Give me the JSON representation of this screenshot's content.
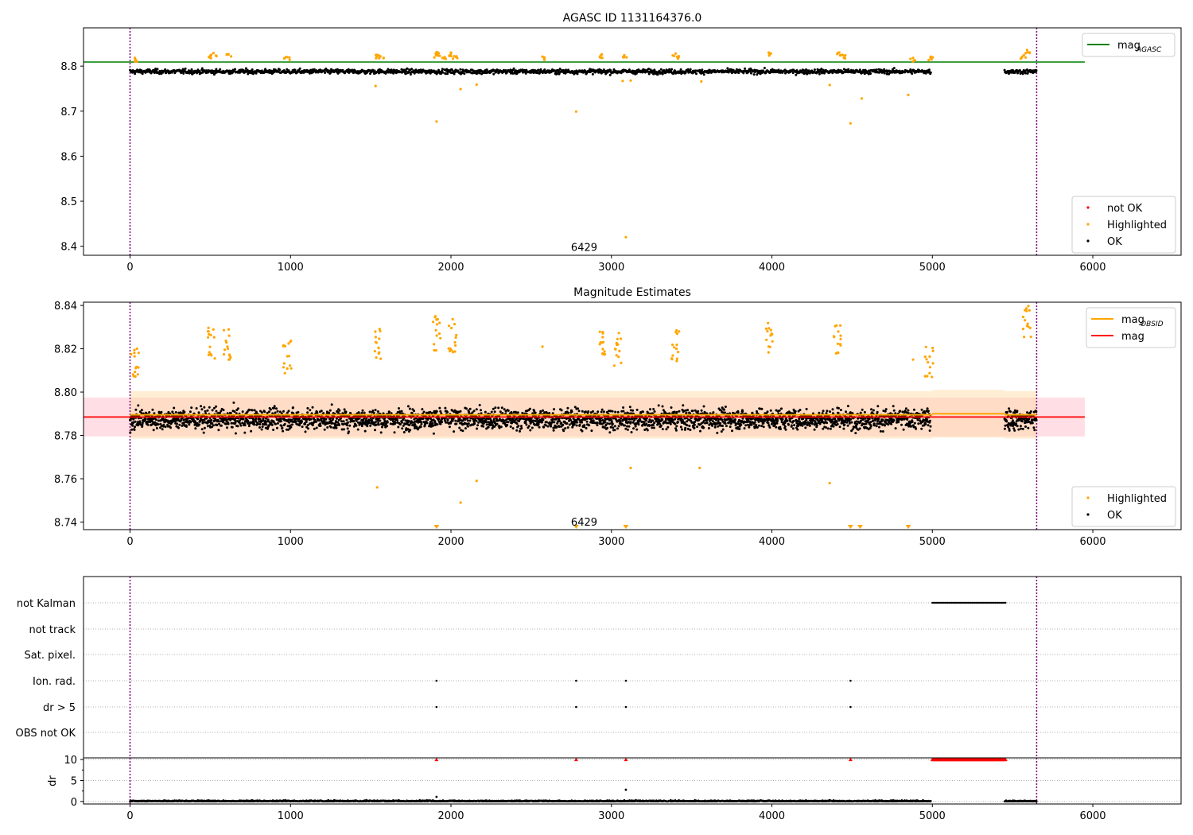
{
  "colors": {
    "ok": "#000000",
    "highlighted": "#ffa500",
    "not_ok": "#ff0000",
    "agasc_line": "#008000",
    "mag_line": "#ff0000",
    "obsid_line": "#ffa500",
    "mag_band": "#ffc0cb",
    "obsid_band": "#ffd9a0",
    "vline": "#800080",
    "grid": "#b0b0b0"
  },
  "chart_data": [
    {
      "type": "scatter",
      "title": "AGASC ID 1131164376.0",
      "xlim": [
        -290,
        6550
      ],
      "ylim": [
        8.38,
        8.885
      ],
      "xticks": [
        0,
        1000,
        2000,
        3000,
        4000,
        5000,
        6000
      ],
      "yticks": [
        8.4,
        8.5,
        8.6,
        8.7,
        8.8
      ],
      "ytick_labels": [
        "8.4",
        "8.5",
        "8.6",
        "8.7",
        "8.8"
      ],
      "xtick_labels": [
        "0",
        "1000",
        "2000",
        "3000",
        "4000",
        "5000",
        "6000"
      ],
      "annotation": {
        "text": "6429",
        "x": 2830,
        "y": 8.395
      },
      "vlines": [
        0,
        5650
      ],
      "hline": {
        "name": "mag_AGASC",
        "y": 8.809,
        "x_range": [
          -290,
          5950
        ]
      },
      "series": [
        {
          "name": "not OK",
          "color": "#ff0000",
          "values": []
        },
        {
          "name": "Highlighted",
          "color": "#ffa500",
          "x": [
            30,
            500,
            520,
            610,
            980,
            1540,
            1560,
            1910,
            1915,
            1960,
            2000,
            2020,
            2570,
            2940,
            3080,
            3400,
            3420,
            3980,
            4420,
            4440,
            4880,
            4990,
            5570,
            5590,
            1530,
            2060,
            2160,
            3070,
            3120,
            3560,
            4360,
            4850,
            1910,
            2780,
            4490,
            4560,
            3090
          ],
          "y": [
            8.818,
            8.823,
            8.829,
            8.826,
            8.82,
            8.825,
            8.822,
            8.831,
            8.826,
            8.82,
            8.83,
            8.822,
            8.821,
            8.826,
            8.824,
            8.828,
            8.822,
            8.83,
            8.83,
            8.825,
            8.818,
            8.821,
            8.824,
            8.836,
            8.756,
            8.749,
            8.759,
            8.767,
            8.768,
            8.766,
            8.758,
            8.736,
            8.677,
            8.699,
            8.673,
            8.728,
            8.42
          ]
        },
        {
          "name": "OK",
          "color": "#000000",
          "segments": [
            [
              0,
              1950
            ],
            [
              1960,
              4990
            ],
            [
              5450,
              5650
            ]
          ],
          "center": 8.788,
          "spread": 0.009
        }
      ],
      "legends": [
        {
          "position": "top-right",
          "entries": [
            {
              "label_main": "mag",
              "label_sub": "AGASC",
              "kind": "line",
              "color": "#008000"
            }
          ]
        },
        {
          "position": "lower-right",
          "entries": [
            {
              "label": "not OK",
              "kind": "dot",
              "color": "#ff0000"
            },
            {
              "label": "Highlighted",
              "kind": "dot",
              "color": "#ffa500"
            },
            {
              "label": "OK",
              "kind": "dot",
              "color": "#000000"
            }
          ]
        }
      ]
    },
    {
      "type": "scatter",
      "title": "Magnitude Estimates",
      "xlim": [
        -290,
        6550
      ],
      "ylim": [
        8.7365,
        8.8415
      ],
      "xticks": [
        0,
        1000,
        2000,
        3000,
        4000,
        5000,
        6000
      ],
      "xtick_labels": [
        "0",
        "1000",
        "2000",
        "3000",
        "4000",
        "5000",
        "6000"
      ],
      "yticks": [
        8.74,
        8.76,
        8.78,
        8.8,
        8.82,
        8.84
      ],
      "ytick_labels": [
        "8.74",
        "8.76",
        "8.78",
        "8.80",
        "8.82",
        "8.84"
      ],
      "annotation": {
        "text": "6429",
        "x": 2830,
        "y": 8.7395
      },
      "vlines": [
        0,
        5650
      ],
      "mag": {
        "y": 8.7885,
        "band": [
          8.7795,
          8.7975
        ],
        "x_range": [
          -290,
          5950
        ]
      },
      "obsid_mags": [
        {
          "x_range": [
            0,
            5000
          ],
          "y": 8.7895,
          "band": [
            8.7785,
            8.8005
          ]
        },
        {
          "x_range": [
            5000,
            5450
          ],
          "y": 8.79,
          "band": [
            8.779,
            8.801
          ]
        },
        {
          "x_range": [
            5450,
            5650
          ],
          "y": 8.7895,
          "band": [
            8.7785,
            8.8005
          ]
        }
      ],
      "series": [
        {
          "name": "Highlighted",
          "color": "#ffa500",
          "clusters": [
            {
              "x": 30,
              "ymax": 8.821
            },
            {
              "x": 510,
              "ymax": 8.831
            },
            {
              "x": 610,
              "ymax": 8.829
            },
            {
              "x": 980,
              "ymax": 8.824
            },
            {
              "x": 1550,
              "ymax": 8.83
            },
            {
              "x": 1910,
              "ymax": 8.835
            },
            {
              "x": 2010,
              "ymax": 8.834
            },
            {
              "x": 2940,
              "ymax": 8.83
            },
            {
              "x": 3040,
              "ymax": 8.828
            },
            {
              "x": 3400,
              "ymax": 8.83
            },
            {
              "x": 3980,
              "ymax": 8.833
            },
            {
              "x": 4410,
              "ymax": 8.832
            },
            {
              "x": 4980,
              "ymax": 8.822
            },
            {
              "x": 5590,
              "ymax": 8.84
            }
          ],
          "extra_x": [
            1540,
            2060,
            2160,
            2570,
            3120,
            3550,
            4360,
            4880
          ],
          "extra_y": [
            8.756,
            8.749,
            8.759,
            8.821,
            8.765,
            8.765,
            8.758,
            8.815
          ],
          "off_scale_x": [
            1910,
            2780,
            3090,
            4490,
            4550,
            4850
          ]
        },
        {
          "name": "OK",
          "color": "#000000",
          "segments": [
            [
              0,
              1950
            ],
            [
              1960,
              4990
            ],
            [
              5450,
              5650
            ]
          ],
          "center": 8.7875,
          "spread": 0.0085
        }
      ],
      "legends": [
        {
          "position": "top-right",
          "entries": [
            {
              "label_main": "mag",
              "label_sub": "OBSID",
              "kind": "line",
              "color": "#ffa500"
            },
            {
              "label": "mag",
              "kind": "line",
              "color": "#ff0000"
            }
          ]
        },
        {
          "position": "lower-right",
          "entries": [
            {
              "label": "Highlighted",
              "kind": "dot",
              "color": "#ffa500"
            },
            {
              "label": "OK",
              "kind": "dot",
              "color": "#000000"
            }
          ]
        }
      ]
    },
    {
      "type": "scatter",
      "title": "",
      "xlim": [
        -290,
        6550
      ],
      "xticks": [
        0,
        1000,
        2000,
        3000,
        4000,
        5000,
        6000
      ],
      "xtick_labels": [
        "0",
        "1000",
        "2000",
        "3000",
        "4000",
        "5000",
        "6000"
      ],
      "vlines": [
        0,
        5650
      ],
      "flags": [
        "not Kalman",
        "not track",
        "Sat. pixel.",
        "Ion. rad.",
        "dr > 5",
        "OBS not OK"
      ],
      "flag_points": {
        "not Kalman": {
          "range": [
            5000,
            5460
          ]
        },
        "Ion. rad.": {
          "x": [
            1910,
            2780,
            3090,
            4490
          ]
        },
        "dr > 5": {
          "x": [
            1910,
            2780,
            3090,
            4490
          ]
        }
      }
    },
    {
      "type": "scatter",
      "title": "",
      "ylabel": "dr",
      "xlim": [
        -290,
        6550
      ],
      "ylim": [
        -0.6,
        10.4
      ],
      "yticks": [
        0,
        5,
        10
      ],
      "ytick_labels": [
        "0",
        "5",
        "10"
      ],
      "xticks": [
        0,
        1000,
        2000,
        3000,
        4000,
        5000,
        6000
      ],
      "xtick_labels": [
        "0",
        "1000",
        "2000",
        "3000",
        "4000",
        "5000",
        "6000"
      ],
      "vlines": [
        0,
        5650
      ],
      "series": [
        {
          "name": "dr",
          "color": "#000000",
          "segments": [
            [
              0,
              4990
            ],
            [
              5450,
              5650
            ]
          ],
          "typical": 0.3
        },
        {
          "name": "clipped",
          "color": "#ff0000",
          "x": [
            1910,
            2780,
            3090,
            4490
          ],
          "range": [
            5000,
            5460
          ],
          "y": 10
        }
      ],
      "outliers": [
        {
          "x": 1910,
          "y": 1.1
        },
        {
          "x": 3090,
          "y": 2.8
        }
      ]
    }
  ]
}
